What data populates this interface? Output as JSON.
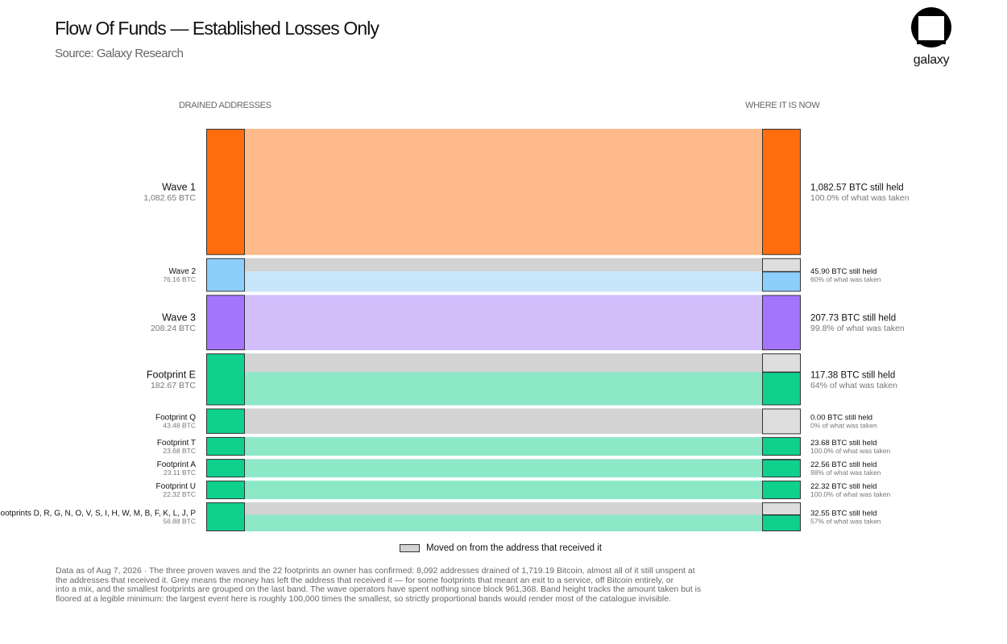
{
  "header": {
    "title": "Flow Of Funds — Established Losses Only",
    "subtitle": "Source: Galaxy Research",
    "logo_text": "galaxy"
  },
  "columns": {
    "left": "DRAINED ADDRESSES",
    "right": "WHERE IT IS NOW"
  },
  "colors": {
    "orange": "#ff6d0c",
    "orange_light": "#ffba8c",
    "blue": "#8ccffd",
    "blue_light": "#c8e6fb",
    "purple": "#a474fc",
    "purple_light": "#d2befb",
    "green": "#0fd08d",
    "green_light": "#8de8c7",
    "grey": "#d3d3d3",
    "grey_node": "#dedede"
  },
  "chart_data": {
    "type": "sankey",
    "rows": [
      {
        "name": "Wave 1",
        "taken": "1,082.65 BTC",
        "taken_btc": 1082.65,
        "held": "1,082.57 BTC still held",
        "held_btc": 1082.57,
        "pct": "100.0% of what was taken",
        "pct_value": 100.0,
        "color": "orange",
        "big": true
      },
      {
        "name": "Wave 2",
        "taken": "76.16 BTC",
        "taken_btc": 76.16,
        "held": "45.90 BTC still held",
        "held_btc": 45.9,
        "pct": "60% of what was taken",
        "pct_value": 60,
        "color": "blue",
        "big": false
      },
      {
        "name": "Wave 3",
        "taken": "208.24 BTC",
        "taken_btc": 208.24,
        "held": "207.73 BTC still held",
        "held_btc": 207.73,
        "pct": "99.8% of what was taken",
        "pct_value": 99.8,
        "color": "purple",
        "big": true
      },
      {
        "name": "Footprint E",
        "taken": "182.67 BTC",
        "taken_btc": 182.67,
        "held": "117.38 BTC still held",
        "held_btc": 117.38,
        "pct": "64% of what was taken",
        "pct_value": 64,
        "color": "green",
        "big": true
      },
      {
        "name": "Footprint Q",
        "taken": "43.48 BTC",
        "taken_btc": 43.48,
        "held": "0.00 BTC still held",
        "held_btc": 0.0,
        "pct": "0% of what was taken",
        "pct_value": 0,
        "color": "green",
        "big": false
      },
      {
        "name": "Footprint T",
        "taken": "23.68 BTC",
        "taken_btc": 23.68,
        "held": "23.68 BTC still held",
        "held_btc": 23.68,
        "pct": "100.0% of what was taken",
        "pct_value": 100.0,
        "color": "green",
        "big": false
      },
      {
        "name": "Footprint A",
        "taken": "23.11 BTC",
        "taken_btc": 23.11,
        "held": "22.56 BTC still held",
        "held_btc": 22.56,
        "pct": "98% of what was taken",
        "pct_value": 98,
        "color": "green",
        "big": false
      },
      {
        "name": "Footprint U",
        "taken": "22.32 BTC",
        "taken_btc": 22.32,
        "held": "22.32 BTC still held",
        "held_btc": 22.32,
        "pct": "100.0% of what was taken",
        "pct_value": 100.0,
        "color": "green",
        "big": false
      },
      {
        "name": "Footprints D, R, G, N, O, V, S, I, H, W, M, B, F, K, L, J, P",
        "taken": "56.88 BTC",
        "taken_btc": 56.88,
        "held": "32.55 BTC still held",
        "held_btc": 32.55,
        "pct": "57% of what was taken",
        "pct_value": 57,
        "color": "green",
        "big": false
      }
    ]
  },
  "legend": {
    "label": "Moved on from the address that received it"
  },
  "footnote": [
    "Data as of Aug 7, 2026 · The three proven waves and the 22 footprints an owner has confirmed: 8,092 addresses drained of 1,719.19 Bitcoin, almost all of it still unspent at",
    "the addresses that received it. Grey means the money has left the address that received it — for some footprints that meant an exit to a service, off Bitcoin entirely, or",
    "into a mix, and the smallest footprints are grouped on the last band. The wave operators have spent nothing since block 961,368. Band height tracks the amount taken but is",
    "floored at a legible minimum: the largest event here is roughly 100,000 times the smallest, so strictly proportional bands would render most of the catalogue invisible."
  ]
}
